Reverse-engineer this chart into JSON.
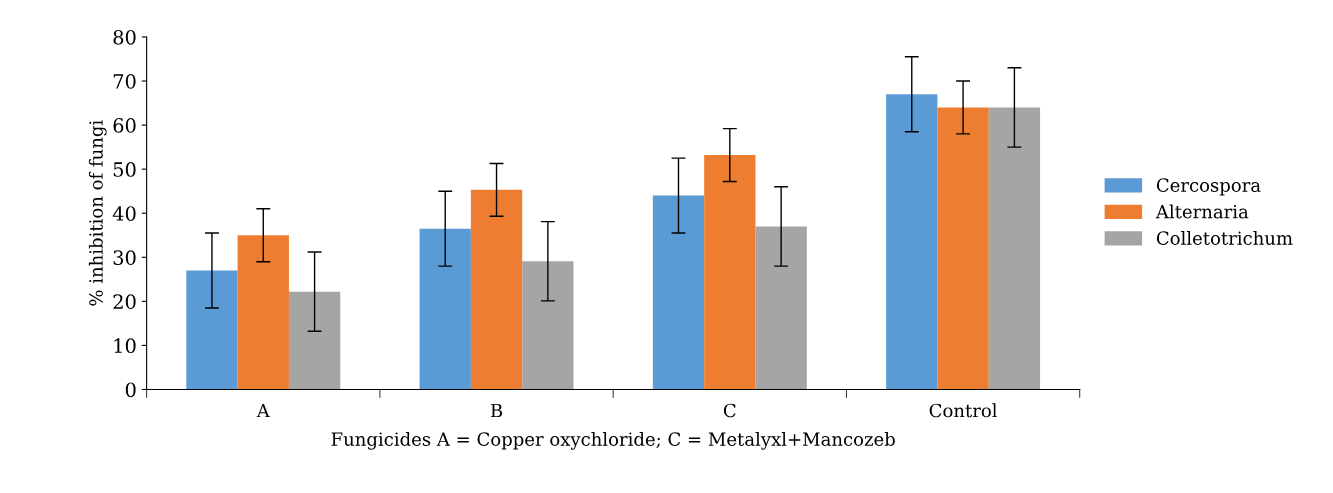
{
  "chart_data": {
    "type": "bar",
    "xlabel": "Fungicides A = Copper oxychloride; C = Metalyxl+Mancozeb",
    "ylabel": "% inhibition of fungi",
    "categories": [
      "A",
      "B",
      "C",
      "Control"
    ],
    "series": [
      {
        "name": "Cercospora",
        "color": "#5b9bd5",
        "values": [
          27,
          36.5,
          44,
          67
        ],
        "errors": [
          8.5,
          8.5,
          8.5,
          8.5
        ]
      },
      {
        "name": "Alternaria",
        "color": "#ed7d31",
        "values": [
          35,
          45.3,
          53.2,
          64
        ],
        "errors": [
          6,
          6,
          6,
          6
        ]
      },
      {
        "name": "Colletotrichum",
        "color": "#a5a5a5",
        "values": [
          22.2,
          29.1,
          37,
          64
        ],
        "errors": [
          9,
          9,
          9,
          9
        ]
      }
    ],
    "ylim": [
      0,
      80
    ],
    "yticks": [
      0,
      10,
      20,
      30,
      40,
      50,
      60,
      70,
      80
    ],
    "grid": false,
    "legend": "right"
  }
}
